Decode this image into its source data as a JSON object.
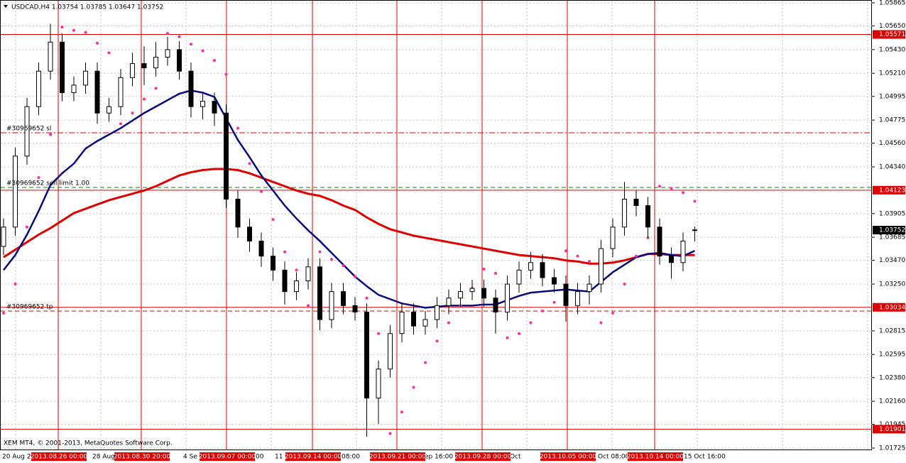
{
  "chart_data": {
    "type": "candlestick",
    "title": "USDCAD,H4  1.03754 1.03785 1.03647 1.03752",
    "footer": "XEM MT4, © 2001-2013, MetaQuotes Software Corp.",
    "open": [
      1.036,
      1.0378,
      1.0444,
      1.049,
      1.0523,
      1.055,
      1.0503,
      1.051,
      1.0523,
      1.0484,
      1.049,
      1.0517,
      1.053,
      1.0526,
      1.0536,
      1.0543,
      1.0523,
      1.049,
      1.0495,
      1.0484,
      1.0404,
      1.0378,
      1.0365,
      1.0351,
      1.0338,
      1.0318,
      1.0328,
      1.0341,
      1.0292,
      1.0318,
      1.0305,
      1.0299,
      1.0219,
      1.0246,
      1.0279,
      1.0299,
      1.0286,
      1.0292,
      1.0305,
      1.0312,
      1.0318,
      1.0321,
      1.0312,
      1.0299,
      1.0325,
      1.0338,
      1.0345,
      1.0331,
      1.0325,
      1.0305,
      1.0318,
      1.0325,
      1.0358,
      1.0378,
      1.0404,
      1.0398,
      1.0378,
      1.0351,
      1.0345,
      1.03754
    ],
    "high": [
      1.0386,
      1.0452,
      1.0498,
      1.0531,
      1.0567,
      1.0558,
      1.0518,
      1.0531,
      1.0531,
      1.0498,
      1.0525,
      1.054,
      1.0546,
      1.055,
      1.0555,
      1.0551,
      1.0531,
      1.0503,
      1.0503,
      1.0492,
      1.0412,
      1.0386,
      1.0373,
      1.0359,
      1.0346,
      1.0336,
      1.0349,
      1.0349,
      1.0326,
      1.0326,
      1.0313,
      1.0307,
      1.0254,
      1.0287,
      1.0307,
      1.0307,
      1.03,
      1.0313,
      1.032,
      1.0326,
      1.0329,
      1.0329,
      1.032,
      1.0333,
      1.0346,
      1.0355,
      1.0353,
      1.0339,
      1.0333,
      1.0326,
      1.0333,
      1.0366,
      1.0386,
      1.042,
      1.0412,
      1.0406,
      1.0386,
      1.0359,
      1.0373,
      1.03785
    ],
    "low": [
      1.0352,
      1.037,
      1.0436,
      1.0482,
      1.0515,
      1.0495,
      1.0495,
      1.0502,
      1.0474,
      1.0476,
      1.0482,
      1.0509,
      1.051,
      1.0518,
      1.0528,
      1.0515,
      1.048,
      1.0478,
      1.0472,
      1.0396,
      1.0368,
      1.0355,
      1.0341,
      1.0328,
      1.0306,
      1.031,
      1.032,
      1.0282,
      1.0284,
      1.0297,
      1.0291,
      1.0183,
      1.0195,
      1.0238,
      1.0271,
      1.0278,
      1.0278,
      1.0284,
      1.0297,
      1.0304,
      1.031,
      1.0304,
      1.0279,
      1.0291,
      1.0317,
      1.033,
      1.0323,
      1.0317,
      1.029,
      1.0297,
      1.0306,
      1.0317,
      1.035,
      1.037,
      1.0388,
      1.0368,
      1.0343,
      1.033,
      1.0337,
      1.03647
    ],
    "close": [
      1.0378,
      1.0444,
      1.049,
      1.0523,
      1.055,
      1.0503,
      1.051,
      1.0523,
      1.0484,
      1.049,
      1.0517,
      1.053,
      1.0526,
      1.0536,
      1.0543,
      1.0523,
      1.049,
      1.0495,
      1.0484,
      1.0404,
      1.0378,
      1.0365,
      1.0351,
      1.0338,
      1.0318,
      1.0328,
      1.0341,
      1.0292,
      1.0318,
      1.0305,
      1.0299,
      1.0219,
      1.0246,
      1.0279,
      1.0299,
      1.0286,
      1.0292,
      1.0305,
      1.0312,
      1.0318,
      1.0321,
      1.0312,
      1.0299,
      1.0325,
      1.0338,
      1.0345,
      1.0331,
      1.0325,
      1.0305,
      1.0318,
      1.0325,
      1.0358,
      1.0378,
      1.0404,
      1.0398,
      1.0378,
      1.0351,
      1.0345,
      1.0365,
      1.03752
    ],
    "ma_fast": {
      "color": "#0a0a80",
      "values": [
        1.0338,
        1.0352,
        1.0371,
        1.0393,
        1.0417,
        1.0428,
        1.0437,
        1.0451,
        1.0458,
        1.0464,
        1.047,
        1.0477,
        1.0484,
        1.049,
        1.0496,
        1.0502,
        1.0505,
        1.0503,
        1.0499,
        1.0479,
        1.0459,
        1.0443,
        1.0426,
        1.0412,
        1.0398,
        1.0386,
        1.0375,
        1.0365,
        1.0354,
        1.0343,
        1.0332,
        1.0323,
        1.0315,
        1.0311,
        1.0307,
        1.0305,
        1.0303,
        1.0304,
        1.0305,
        1.0305,
        1.0305,
        1.0306,
        1.0306,
        1.031,
        1.0314,
        1.0317,
        1.0318,
        1.0319,
        1.032,
        1.0319,
        1.0318,
        1.0327,
        1.0336,
        1.0343,
        1.035,
        1.0353,
        1.0354,
        1.0352,
        1.0351,
        1.0356
      ]
    },
    "ma_slow": {
      "color": "#e00000",
      "values": [
        1.035,
        1.0357,
        1.0364,
        1.0371,
        1.0377,
        1.0384,
        1.0391,
        1.0395,
        1.0399,
        1.0403,
        1.0406,
        1.0409,
        1.0412,
        1.0416,
        1.0421,
        1.0426,
        1.0429,
        1.0431,
        1.0432,
        1.0432,
        1.0431,
        1.0428,
        1.0424,
        1.042,
        1.0416,
        1.0412,
        1.0409,
        1.0407,
        1.0403,
        1.0398,
        1.0394,
        1.0387,
        1.0381,
        1.0376,
        1.0373,
        1.037,
        1.0368,
        1.0366,
        1.0364,
        1.0362,
        1.036,
        1.0358,
        1.0356,
        1.0354,
        1.0352,
        1.0351,
        1.035,
        1.0349,
        1.0347,
        1.0346,
        1.0344,
        1.0344,
        1.0345,
        1.0347,
        1.035,
        1.0353,
        1.0353,
        1.0352,
        1.0352,
        1.0352
      ]
    },
    "sar": {
      "color": "#ff2d9a",
      "values": [
        1.0298,
        1.0325,
        1.0378,
        1.0424,
        1.0464,
        1.0564,
        1.0561,
        1.0559,
        1.0549,
        1.054,
        1.0474,
        1.0484,
        1.0497,
        1.0507,
        1.0558,
        1.0555,
        1.0548,
        1.0542,
        1.0533,
        1.052,
        1.047,
        1.0437,
        1.0411,
        1.0385,
        1.0355,
        1.0338,
        1.0305,
        1.0355,
        1.0348,
        1.0342,
        1.0332,
        1.0312,
        1.0279,
        1.0186,
        1.0206,
        1.0229,
        1.0252,
        1.0272,
        1.0289,
        1.0305,
        1.0321,
        1.0339,
        1.0335,
        1.0275,
        1.0279,
        1.0289,
        1.03,
        1.0308,
        1.0356,
        1.0351,
        1.0346,
        1.0289,
        1.0298,
        1.0325,
        1.0351,
        1.0368,
        1.0416,
        1.0414,
        1.041,
        1.0402
      ]
    },
    "ylim": [
      1.01725,
      1.05865
    ],
    "yticks": [
      1.05865,
      {
        "value": 1.0565,
        "label": "1.05650"
      },
      {
        "value": 1.0543,
        "label": "1.05430"
      },
      {
        "value": 1.0521,
        "label": "1.05210"
      },
      1.04995,
      1.04775,
      {
        "value": 1.0456,
        "label": "1.04560"
      },
      {
        "value": 1.0434,
        "label": "1.04340"
      },
      1.03905,
      1.03685,
      {
        "value": 1.0347,
        "label": "1.03470"
      },
      {
        "value": 1.0325,
        "label": "1.03250"
      },
      1.02815,
      1.02595,
      {
        "value": 1.0238,
        "label": "1.02380"
      },
      {
        "value": 1.0216,
        "label": "1.02160"
      },
      1.01945,
      1.01725
    ],
    "levels": [
      1.05571,
      1.04123,
      1.03034,
      1.01901
    ],
    "level_color": "#e00000",
    "orders": [
      {
        "label": "#30969652 sl",
        "value": 1.04657,
        "color": "#e00000"
      },
      {
        "label": "#30969652 sell limit 1.00",
        "value": 1.04148,
        "color": "#008000"
      },
      {
        "label": "#30969652 tp",
        "value": 1.02999,
        "color": "#e00000"
      }
    ],
    "separators": [
      "2013.08.26 00:00",
      "2013.08.30 20:00",
      "2013.09.07 00:00",
      "2013.09.14 00:00",
      "2013.09.21 00:00",
      "2013.09.28 00:00",
      "2013.10.05 00:00",
      "2013.10.14 00:00"
    ],
    "time_labels": [
      "20 Aug 20",
      "28 Aug",
      "4 Se",
      ":00",
      "11",
      "08:00",
      "ep 16:00",
      "Oct",
      "Oct 08:00",
      "15 Oct 16:00"
    ],
    "grid": true
  }
}
